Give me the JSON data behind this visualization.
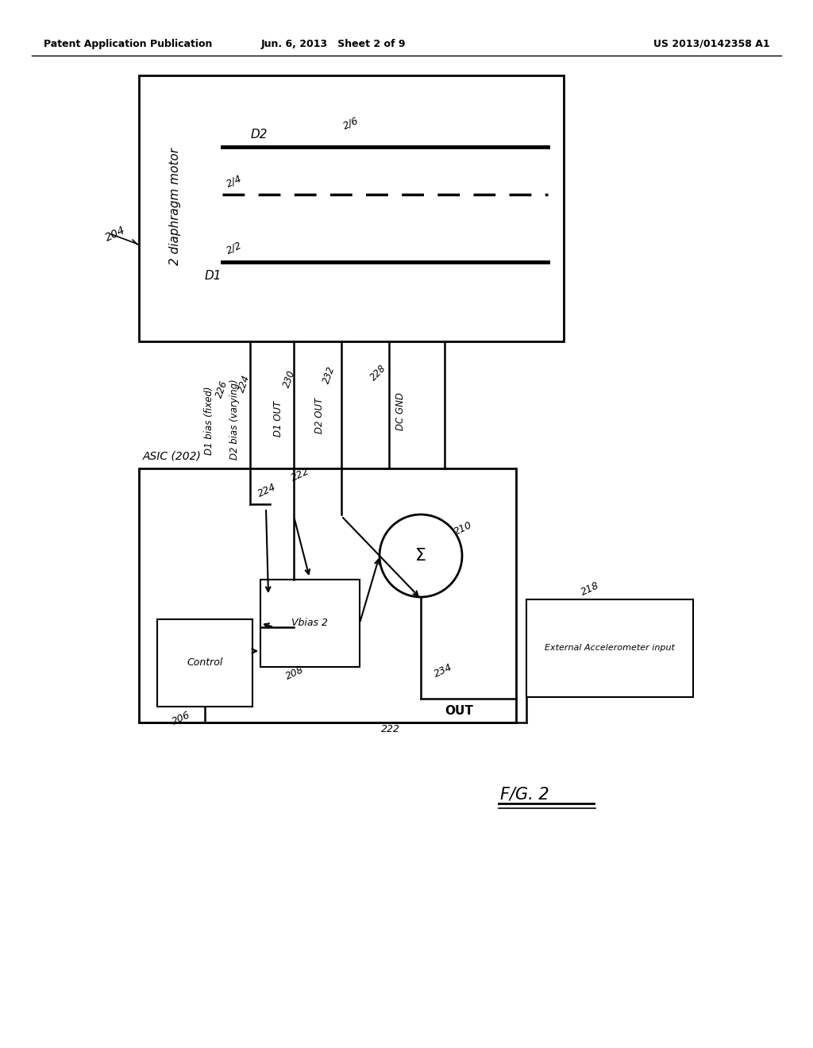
{
  "bg_color": "#ffffff",
  "header_left": "Patent Application Publication",
  "header_mid": "Jun. 6, 2013   Sheet 2 of 9",
  "header_right": "US 2013/0142358 A1",
  "fig_label": "F/G. 2"
}
